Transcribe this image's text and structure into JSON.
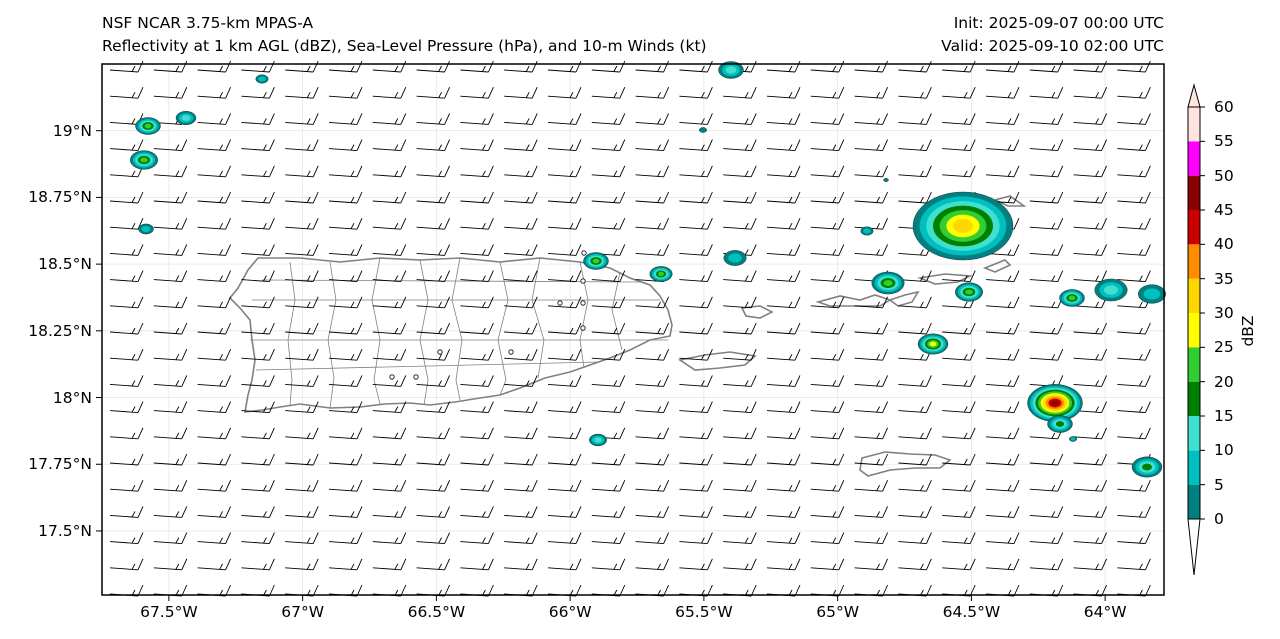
{
  "header": {
    "title_left_1": "NSF NCAR 3.75-km MPAS-A",
    "title_left_2": "Reflectivity at 1 km AGL (dBZ), Sea-Level Pressure (hPa), and 10-m Winds (kt)",
    "title_right_1": "Init: 2025-09-07 00:00 UTC",
    "title_right_2": "Valid: 2025-09-10 02:00 UTC"
  },
  "map": {
    "lon_range": [
      -67.75,
      -63.78
    ],
    "lat_range": [
      17.26,
      19.25
    ],
    "lat_ticks": [
      "19°N",
      "18.75°N",
      "18.5°N",
      "18.25°N",
      "18°N",
      "17.75°N",
      "17.5°N"
    ],
    "lat_values": [
      19.0,
      18.75,
      18.5,
      18.25,
      18.0,
      17.75,
      17.5
    ],
    "lon_ticks": [
      "67.5°W",
      "67°W",
      "66.5°W",
      "66°W",
      "65.5°W",
      "65°W",
      "64.5°W",
      "64°W"
    ],
    "lon_values": [
      -67.5,
      -67.0,
      -66.5,
      -66.0,
      -65.5,
      -65.0,
      -64.5,
      -64.0
    ],
    "land_outline_color": "#808080",
    "wind_barb_color": "#000000",
    "wind": {
      "direction": "easterly",
      "speed_kt_typical": 15
    }
  },
  "colorbar": {
    "label": "dBZ",
    "ticks": [
      "60",
      "55",
      "50",
      "45",
      "40",
      "35",
      "30",
      "25",
      "20",
      "15",
      "10",
      "5",
      "0"
    ],
    "levels": [
      0,
      5,
      10,
      15,
      20,
      25,
      30,
      35,
      40,
      45,
      50,
      55,
      60
    ],
    "colors": [
      "#008080",
      "#00bfbf",
      "#40e0d0",
      "#008000",
      "#32cd32",
      "#ffff00",
      "#ffd700",
      "#ff8c00",
      "#cd0000",
      "#8b0000",
      "#ff00ff",
      "#ffe4e1"
    ],
    "extend": "both"
  }
}
